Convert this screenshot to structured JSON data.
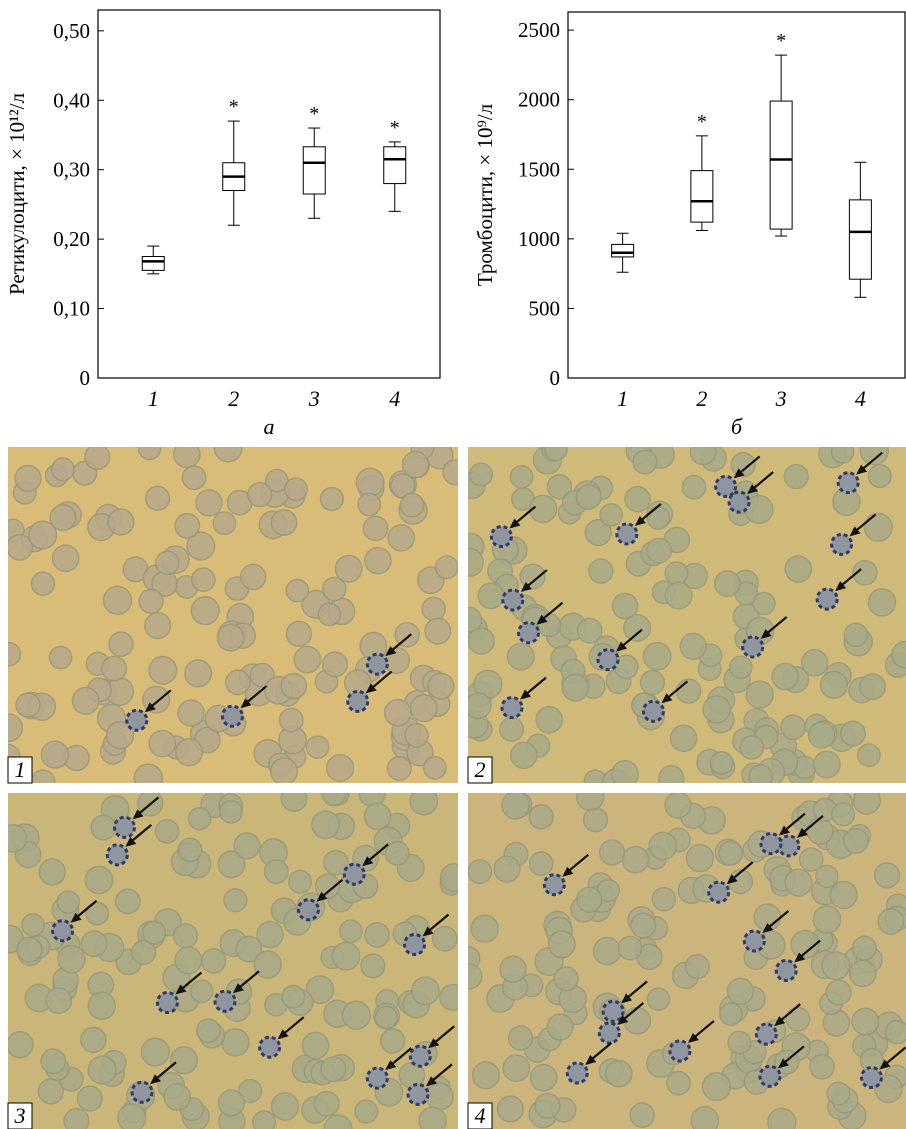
{
  "chart_data": [
    {
      "type": "box",
      "ylabel": "Ретикулоцити, × 10¹²/л",
      "xlabel": "а",
      "categories": [
        "1",
        "2",
        "3",
        "4"
      ],
      "whisker_low": [
        0.15,
        0.22,
        0.23,
        0.24
      ],
      "q1": [
        0.155,
        0.27,
        0.265,
        0.28
      ],
      "median": [
        0.168,
        0.29,
        0.31,
        0.315
      ],
      "q3": [
        0.175,
        0.31,
        0.333,
        0.333
      ],
      "whisker_high": [
        0.19,
        0.37,
        0.36,
        0.34
      ],
      "annotations": [
        null,
        "*",
        "*",
        "*"
      ],
      "ylim": [
        0,
        0.53
      ],
      "yticks": [
        0,
        {
          "value": 0.1,
          "label": "0,10"
        },
        {
          "value": 0.2,
          "label": "0,20"
        },
        {
          "value": 0.3,
          "label": "0,30"
        },
        {
          "value": 0.4,
          "label": "0,40"
        },
        {
          "value": 0.5,
          "label": "0,50"
        }
      ]
    },
    {
      "type": "box",
      "ylabel": "Тромбоцити, × 10⁹/л",
      "xlabel": "б",
      "categories": [
        "1",
        "2",
        "3",
        "4"
      ],
      "whisker_low": [
        760,
        1060,
        1020,
        580
      ],
      "q1": [
        870,
        1120,
        1070,
        710
      ],
      "median": [
        900,
        1270,
        1570,
        1050
      ],
      "q3": [
        960,
        1490,
        1990,
        1280
      ],
      "whisker_high": [
        1040,
        1740,
        2320,
        1550
      ],
      "annotations": [
        null,
        "*",
        "*",
        null
      ],
      "ylim": [
        0,
        2630
      ],
      "yticks": [
        0,
        500,
        1000,
        1500,
        2000,
        2500
      ]
    }
  ],
  "panels": [
    {
      "label": "1"
    },
    {
      "label": "2"
    },
    {
      "label": "3"
    },
    {
      "label": "4"
    }
  ]
}
